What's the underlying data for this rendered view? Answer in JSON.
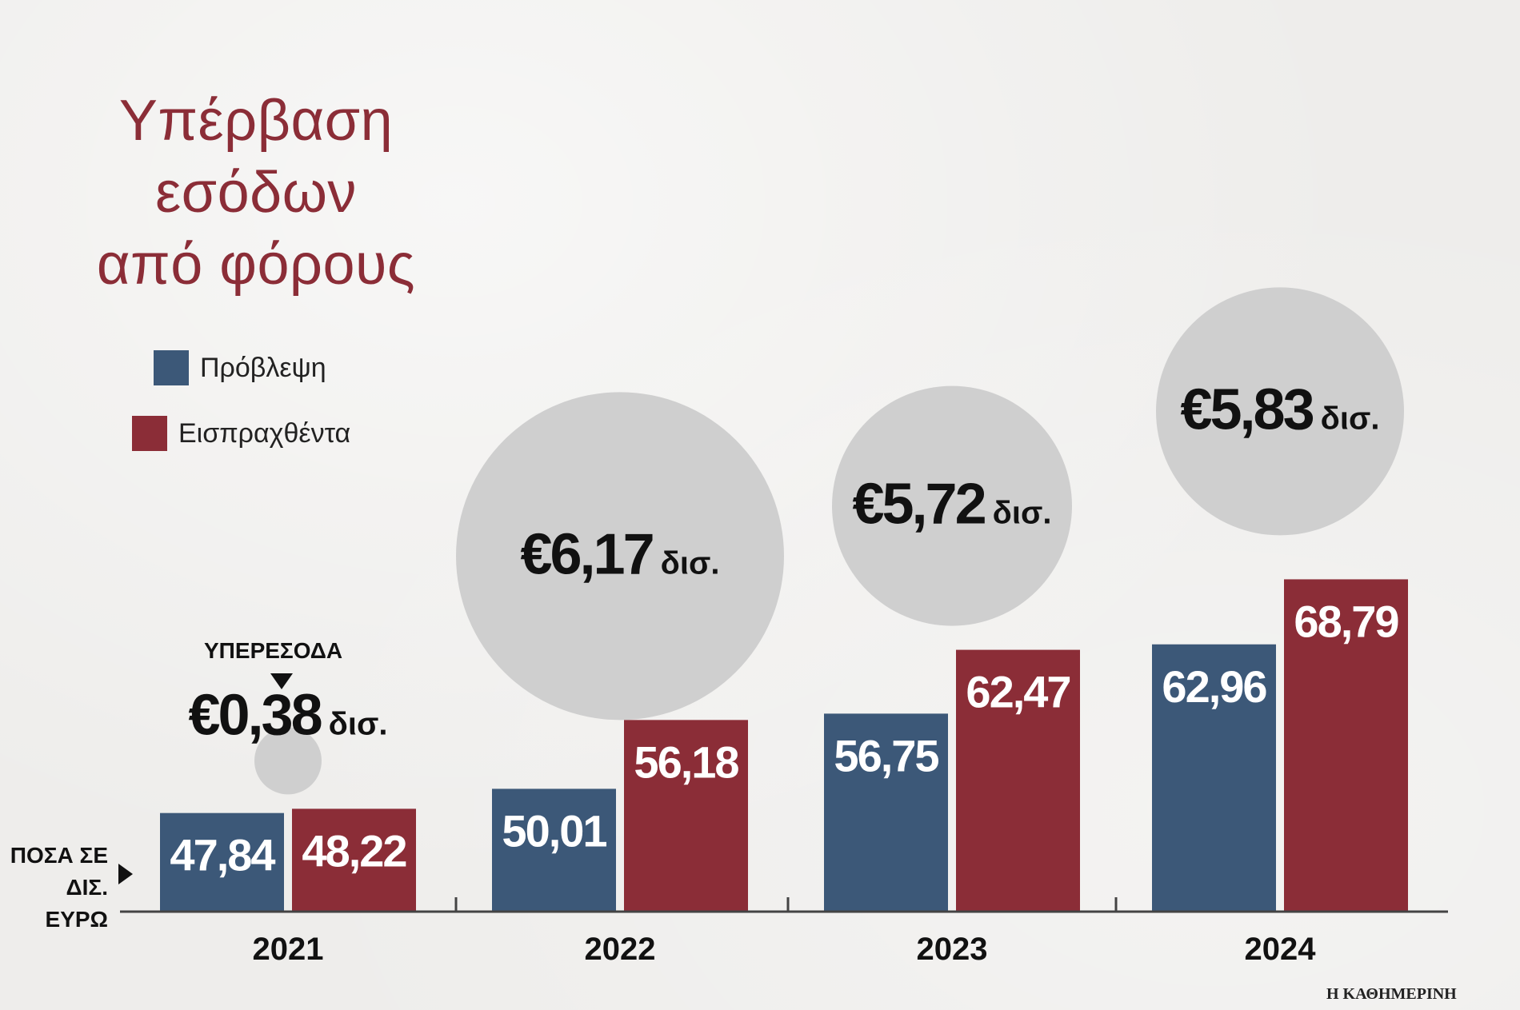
{
  "chart_data": {
    "type": "bar",
    "title_lines": [
      "Υπέρβαση",
      "εσόδων",
      "από φόρους"
    ],
    "categories": [
      "2021",
      "2022",
      "2023",
      "2024"
    ],
    "series": [
      {
        "name": "Πρόβλεψη",
        "color": "#3c5878",
        "values": [
          47.84,
          50.01,
          56.75,
          62.96
        ],
        "labels": [
          "47,84",
          "50,01",
          "56,75",
          "62,96"
        ]
      },
      {
        "name": "Εισπραχθέντα",
        "color": "#8b2d37",
        "values": [
          48.22,
          56.18,
          62.47,
          68.79
        ],
        "labels": [
          "48,22",
          "56,18",
          "62,47",
          "68,79"
        ]
      }
    ],
    "excess": [
      {
        "year": "2021",
        "amount": "€0,38",
        "unit": "δισ.",
        "value": 0.38
      },
      {
        "year": "2022",
        "amount": "€6,17",
        "unit": "δισ.",
        "value": 6.17
      },
      {
        "year": "2023",
        "amount": "€5,72",
        "unit": "δισ.",
        "value": 5.72
      },
      {
        "year": "2024",
        "amount": "€5,83",
        "unit": "δισ.",
        "value": 5.83
      }
    ],
    "surplus_label": "ΥΠΕΡΕΣΟΔΑ",
    "unit_note": [
      "ΠΟΣΑ ΣΕ",
      "ΔΙΣ. ΕΥΡΩ"
    ],
    "colors": {
      "circle": "#cfcfcf",
      "title": "#8b2d37",
      "axis": "#444444"
    }
  },
  "source": "Η ΚΑΘΗΜΕΡΙΝΗ"
}
